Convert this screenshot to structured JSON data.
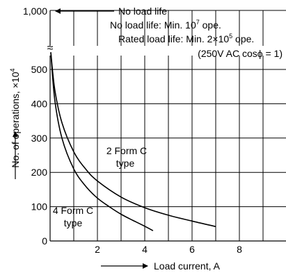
{
  "chart_data": {
    "type": "line",
    "xlabel": "Load current, A",
    "ylabel": "No. of operations, ×10",
    "ylabel_exp": "4",
    "x_ticks": [
      2,
      4,
      6,
      8
    ],
    "y_ticks": [
      0,
      100,
      200,
      300,
      400,
      500
    ],
    "y_top_tick": "1,000",
    "xlim": [
      0,
      10
    ],
    "ylim": [
      0,
      500
    ],
    "grid": true,
    "axis_break": "≈",
    "no_load_life": {
      "arrow_label": "No load life",
      "line1_pre": "No load life: Min. 10",
      "line1_exp": "7",
      "line1_post": " ope.",
      "line2_pre": "Rated load life: Min. 2×10",
      "line2_exp": "5",
      "line2_post": " ope.",
      "condition": "(250V AC cosϕ = 1)"
    },
    "series": [
      {
        "name": "2 Form C type",
        "label_line1": "2 Form C",
        "label_line2": "type",
        "points": [
          [
            0.03,
            550
          ],
          [
            0.2,
            440
          ],
          [
            0.5,
            345
          ],
          [
            1.0,
            260
          ],
          [
            1.5,
            210
          ],
          [
            2.0,
            175
          ],
          [
            3.0,
            128
          ],
          [
            4.0,
            97
          ],
          [
            5.0,
            75
          ],
          [
            6.0,
            58
          ],
          [
            7.0,
            42
          ]
        ]
      },
      {
        "name": "4 Form C type",
        "label_line1": "4 Form C",
        "label_line2": "type",
        "points": [
          [
            0.03,
            550
          ],
          [
            0.2,
            410
          ],
          [
            0.5,
            300
          ],
          [
            1.0,
            210
          ],
          [
            1.5,
            160
          ],
          [
            2.0,
            125
          ],
          [
            2.5,
            100
          ],
          [
            3.0,
            78
          ],
          [
            3.5,
            60
          ],
          [
            4.0,
            43
          ],
          [
            4.35,
            30
          ]
        ]
      }
    ]
  }
}
